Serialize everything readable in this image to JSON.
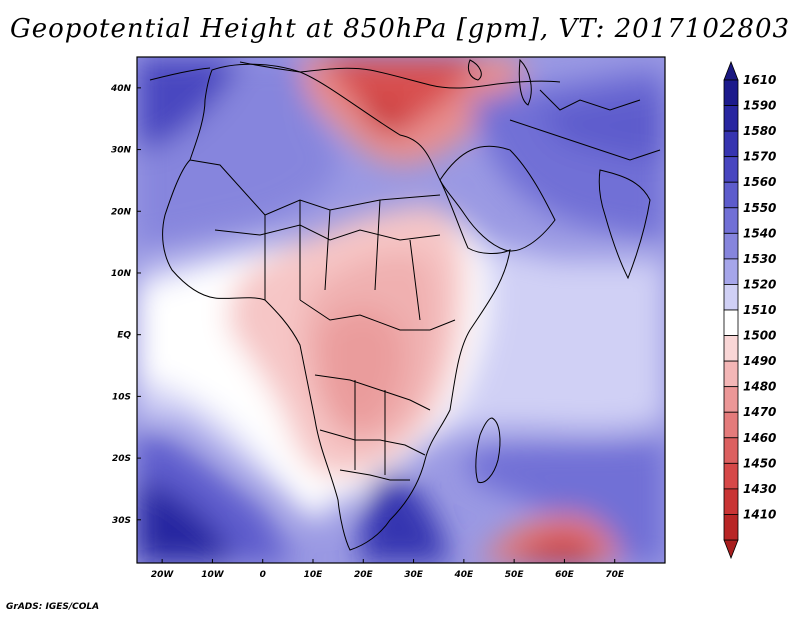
{
  "title": "Geopotential Height at 850hPa [gpm], VT: 2017102803",
  "footer": "GrADS: IGES/COLA",
  "map": {
    "variable": "Geopotential Height",
    "level": "850hPa",
    "units": "gpm",
    "valid_time": "2017102803",
    "lon_range": [
      -25,
      80
    ],
    "lat_range": [
      -37,
      45
    ],
    "x_ticks": [
      {
        "value": -20,
        "label": "20W"
      },
      {
        "value": -10,
        "label": "10W"
      },
      {
        "value": 0,
        "label": "0"
      },
      {
        "value": 10,
        "label": "10E"
      },
      {
        "value": 20,
        "label": "20E"
      },
      {
        "value": 30,
        "label": "30E"
      },
      {
        "value": 40,
        "label": "40E"
      },
      {
        "value": 50,
        "label": "50E"
      },
      {
        "value": 60,
        "label": "60E"
      },
      {
        "value": 70,
        "label": "70E"
      }
    ],
    "y_ticks": [
      {
        "value": 40,
        "label": "40N"
      },
      {
        "value": 30,
        "label": "30N"
      },
      {
        "value": 20,
        "label": "20N"
      },
      {
        "value": 10,
        "label": "10N"
      },
      {
        "value": 0,
        "label": "EQ"
      },
      {
        "value": -10,
        "label": "10S"
      },
      {
        "value": -20,
        "label": "20S"
      },
      {
        "value": -30,
        "label": "30S"
      }
    ]
  },
  "colorbar": {
    "levels": [
      {
        "label": "1610",
        "color": "#1c1a8c"
      },
      {
        "label": "1590",
        "color": "#2826a0"
      },
      {
        "label": "1580",
        "color": "#3634b0"
      },
      {
        "label": "1570",
        "color": "#4846c0"
      },
      {
        "label": "1560",
        "color": "#5d5ccc"
      },
      {
        "label": "1550",
        "color": "#7170d6"
      },
      {
        "label": "1540",
        "color": "#8685dd"
      },
      {
        "label": "1530",
        "color": "#a6a6ea"
      },
      {
        "label": "1520",
        "color": "#d0d0f5"
      },
      {
        "label": "1510",
        "color": "#ffffff"
      },
      {
        "label": "1500",
        "color": "#f9d6d6"
      },
      {
        "label": "1490",
        "color": "#f3b6b6"
      },
      {
        "label": "1480",
        "color": "#ec9797"
      },
      {
        "label": "1470",
        "color": "#e47b7b"
      },
      {
        "label": "1460",
        "color": "#dc6060"
      },
      {
        "label": "1450",
        "color": "#d64848"
      },
      {
        "label": "1430",
        "color": "#c93434"
      },
      {
        "label": "1410",
        "color": "#b82525"
      }
    ],
    "top_color": "#1a1880",
    "bottom_color": "#a81e1e"
  }
}
